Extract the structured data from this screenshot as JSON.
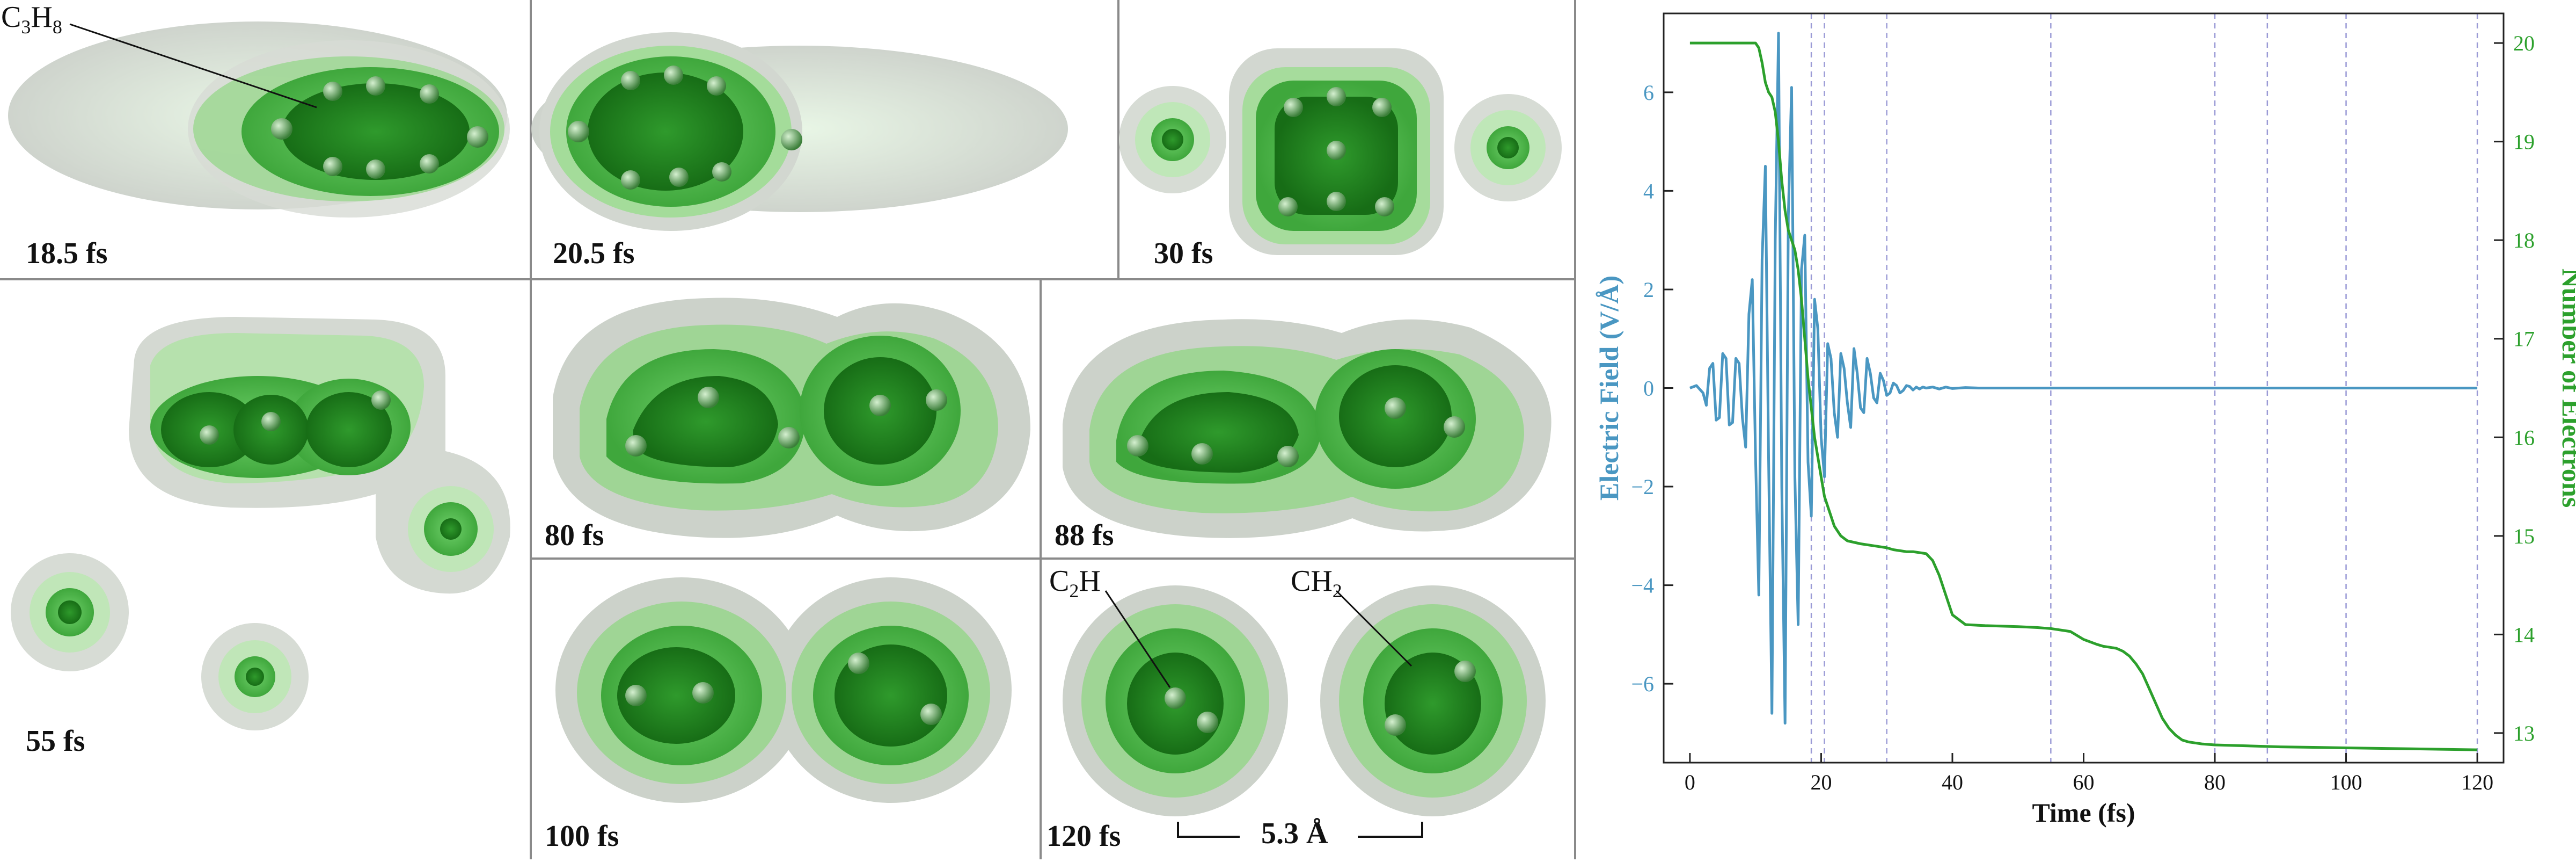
{
  "colors": {
    "field": "#4a97c2",
    "electrons": "#2ca02c",
    "density_inner": "#1d7f1d",
    "density_mid": "#4fbf4f",
    "density_outer": "#cfe9cf",
    "shell": "#d9ded8",
    "divider": "#8a8a8a",
    "marker": "#9b9bd6"
  },
  "panels": [
    {
      "id": "p1",
      "time_label": "18.5 fs"
    },
    {
      "id": "p2",
      "time_label": "20.5 fs"
    },
    {
      "id": "p3",
      "time_label": "30 fs"
    },
    {
      "id": "p4",
      "time_label": "55 fs"
    },
    {
      "id": "p5",
      "time_label": "80 fs"
    },
    {
      "id": "p6",
      "time_label": "88 fs"
    },
    {
      "id": "p7",
      "time_label": "100 fs"
    },
    {
      "id": "p8",
      "time_label": "120 fs"
    }
  ],
  "annotations": {
    "molecule": {
      "base": "C",
      "sub1": "3",
      "mid": "H",
      "sub2": "8"
    },
    "fragment_left": {
      "base": "C",
      "sub1": "2",
      "mid": "H"
    },
    "fragment_right": {
      "base": "CH",
      "sub1": "2"
    },
    "scale": "5.3 Å"
  },
  "chart_data": {
    "type": "line",
    "xlabel": "Time (fs)",
    "ylabel_left": "Electric Field (V/Å)",
    "ylabel_right": "Number of Electrons",
    "xlim": [
      -4,
      124
    ],
    "ylim_left": [
      -7.6,
      7.6
    ],
    "ylim_right": [
      12.7,
      20.3
    ],
    "xticks": [
      0,
      20,
      40,
      60,
      80,
      100,
      120
    ],
    "yticks_left": [
      -6,
      -4,
      -2,
      0,
      2,
      4,
      6
    ],
    "yticks_right": [
      13,
      14,
      15,
      16,
      17,
      18,
      19,
      20
    ],
    "grid": false,
    "vertical_markers": [
      18.5,
      20.5,
      30,
      55,
      80,
      88,
      100,
      120
    ],
    "series": [
      {
        "axis": "left",
        "x": [
          0,
          1,
          2,
          2.5,
          3,
          3.5,
          4,
          4.5,
          5,
          5.5,
          6,
          6.5,
          7,
          7.5,
          8,
          8.5,
          9,
          9.5,
          10,
          10.5,
          11,
          11.5,
          12,
          12.5,
          13,
          13.5,
          14,
          14.5,
          15,
          15.5,
          16,
          16.5,
          17,
          17.5,
          18,
          18.5,
          19,
          19.5,
          20,
          20.5,
          21,
          21.5,
          22,
          22.5,
          23,
          23.5,
          24,
          24.5,
          25,
          25.5,
          26,
          26.5,
          27,
          27.5,
          28,
          28.5,
          29,
          29.5,
          30,
          30.5,
          31,
          31.5,
          32,
          32.5,
          33,
          33.5,
          34,
          34.5,
          35,
          35.5,
          36,
          37,
          38,
          39,
          40,
          42,
          44,
          46,
          48,
          50,
          55,
          60,
          70,
          80,
          90,
          100,
          110,
          120
        ],
        "y": [
          0,
          0.05,
          -0.1,
          -0.35,
          0.4,
          0.5,
          -0.65,
          -0.6,
          0.7,
          0.6,
          -0.75,
          -0.7,
          0.6,
          0.5,
          -0.6,
          -1.2,
          1.5,
          2.2,
          -1.4,
          -4.2,
          2.6,
          4.5,
          -1.5,
          -6.6,
          3,
          7.2,
          -2,
          -6.8,
          3.5,
          6.1,
          -1.8,
          -4.8,
          2.4,
          3.1,
          -1.5,
          -2.6,
          1.8,
          1.2,
          -1,
          -1.8,
          0.9,
          0.6,
          -0.5,
          -1,
          0.7,
          0.4,
          -0.3,
          -0.8,
          0.8,
          0.3,
          -0.4,
          -0.5,
          0.6,
          0.3,
          -0.2,
          -0.3,
          0.3,
          0.15,
          -0.15,
          -0.1,
          0.1,
          0.05,
          -0.1,
          -0.05,
          0.05,
          0.03,
          -0.04,
          0.02,
          -0.02,
          0.02,
          0,
          0.02,
          -0.02,
          0.02,
          -0.01,
          0.01,
          0,
          0,
          0,
          0,
          0,
          0,
          0,
          0,
          0,
          0,
          0,
          0
        ]
      },
      {
        "axis": "right",
        "x": [
          0,
          6,
          10,
          10.5,
          11,
          11.5,
          12,
          12.5,
          13,
          13.5,
          14,
          14.5,
          15,
          15.5,
          16,
          16.5,
          17,
          17.5,
          18,
          18.5,
          19,
          19.5,
          20,
          20.5,
          21,
          21.5,
          22,
          22.5,
          23,
          24,
          26,
          28,
          30,
          31,
          32,
          33,
          34,
          35,
          36,
          37,
          38,
          39,
          40,
          42,
          45,
          50,
          53,
          55,
          56,
          57,
          58,
          60,
          62,
          63,
          64,
          65,
          66,
          67,
          68,
          69,
          70,
          71,
          72,
          73,
          74,
          75,
          76,
          77,
          78,
          80,
          85,
          90,
          100,
          110,
          120
        ],
        "y": [
          20,
          20,
          20,
          19.95,
          19.8,
          19.6,
          19.5,
          19.45,
          19.3,
          19,
          18.6,
          18.3,
          18.1,
          18,
          17.9,
          17.7,
          17.4,
          17,
          16.6,
          16.3,
          16,
          15.8,
          15.6,
          15.4,
          15.3,
          15.2,
          15.1,
          15.05,
          15,
          14.95,
          14.92,
          14.9,
          14.88,
          14.86,
          14.85,
          14.84,
          14.84,
          14.83,
          14.82,
          14.75,
          14.6,
          14.4,
          14.2,
          14.1,
          14.09,
          14.08,
          14.07,
          14.06,
          14.05,
          14.04,
          14.03,
          13.95,
          13.9,
          13.88,
          13.87,
          13.86,
          13.83,
          13.78,
          13.7,
          13.6,
          13.45,
          13.3,
          13.15,
          13.05,
          12.98,
          12.93,
          12.91,
          12.9,
          12.89,
          12.88,
          12.87,
          12.86,
          12.85,
          12.84,
          12.83
        ]
      }
    ]
  }
}
